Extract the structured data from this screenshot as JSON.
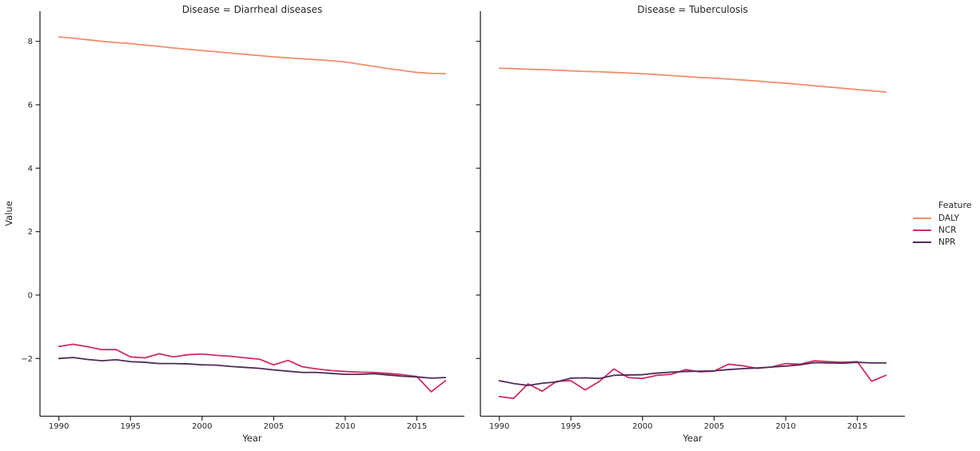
{
  "figure": {
    "background": "#ffffff",
    "text_color": "#262626",
    "axis_color": "#262626"
  },
  "panels": [
    {
      "title": "Disease = Diarrheal diseases"
    },
    {
      "title": "Disease = Tuberculosis"
    }
  ],
  "axes": {
    "xlabel": "Year",
    "ylabel": "Value",
    "x_tick_labels": [
      "1990",
      "1995",
      "2000",
      "2005",
      "2010",
      "2015"
    ],
    "y_tick_labels": [
      "8",
      "6",
      "4",
      "2",
      "0",
      "−2"
    ]
  },
  "legend": {
    "title": "Feature",
    "entries": [
      {
        "label": "DALY",
        "color": "#EF8F6B"
      },
      {
        "label": "NCR",
        "color": "#CE2D63"
      },
      {
        "label": "NPR",
        "color": "#502B58"
      }
    ]
  },
  "chart_data": [
    {
      "type": "line",
      "title": "Disease = Diarrheal diseases",
      "xlabel": "Year",
      "ylabel": "Value",
      "x": [
        1990,
        1991,
        1992,
        1993,
        1994,
        1995,
        1996,
        1997,
        1998,
        1999,
        2000,
        2001,
        2002,
        2003,
        2004,
        2005,
        2006,
        2007,
        2008,
        2009,
        2010,
        2011,
        2012,
        2013,
        2014,
        2015,
        2016,
        2017
      ],
      "x_tick_values": [
        1990,
        1995,
        2000,
        2005,
        2010,
        2015
      ],
      "y_tick_values": [
        8,
        6,
        4,
        2,
        0,
        -2
      ],
      "xlim": [
        1988.68,
        2018.32
      ],
      "ylim": [
        -3.82,
        8.95
      ],
      "legend_position": "right",
      "grid": false,
      "series": [
        {
          "name": "DALY",
          "color": "#EF8F6B",
          "values": [
            8.14,
            8.1,
            8.05,
            8.0,
            7.96,
            7.93,
            7.88,
            7.84,
            7.79,
            7.75,
            7.71,
            7.67,
            7.63,
            7.59,
            7.55,
            7.51,
            7.48,
            7.45,
            7.42,
            7.39,
            7.35,
            7.28,
            7.21,
            7.14,
            7.08,
            7.02,
            6.99,
            6.98
          ]
        },
        {
          "name": "NCR",
          "color": "#CE2D63",
          "values": [
            -1.62,
            -1.55,
            -1.63,
            -1.72,
            -1.72,
            -1.95,
            -1.98,
            -1.85,
            -1.95,
            -1.88,
            -1.86,
            -1.9,
            -1.93,
            -1.98,
            -2.02,
            -2.2,
            -2.06,
            -2.26,
            -2.33,
            -2.38,
            -2.41,
            -2.43,
            -2.44,
            -2.47,
            -2.51,
            -2.57,
            -3.05,
            -2.7
          ]
        },
        {
          "name": "NPR",
          "color": "#502B58",
          "values": [
            -2.0,
            -1.97,
            -2.03,
            -2.07,
            -2.04,
            -2.1,
            -2.12,
            -2.16,
            -2.16,
            -2.17,
            -2.2,
            -2.21,
            -2.25,
            -2.28,
            -2.31,
            -2.36,
            -2.4,
            -2.44,
            -2.44,
            -2.47,
            -2.5,
            -2.5,
            -2.48,
            -2.52,
            -2.56,
            -2.58,
            -2.62,
            -2.6
          ]
        }
      ]
    },
    {
      "type": "line",
      "title": "Disease = Tuberculosis",
      "xlabel": "Year",
      "ylabel": "Value",
      "x": [
        1990,
        1991,
        1992,
        1993,
        1994,
        1995,
        1996,
        1997,
        1998,
        1999,
        2000,
        2001,
        2002,
        2003,
        2004,
        2005,
        2006,
        2007,
        2008,
        2009,
        2010,
        2011,
        2012,
        2013,
        2014,
        2015,
        2016,
        2017
      ],
      "x_tick_values": [
        1990,
        1995,
        2000,
        2005,
        2010,
        2015
      ],
      "y_tick_values": [
        8,
        6,
        4,
        2,
        0,
        -2
      ],
      "xlim": [
        1988.68,
        2018.32
      ],
      "ylim": [
        -3.82,
        8.95
      ],
      "legend_position": "right",
      "grid": false,
      "series": [
        {
          "name": "DALY",
          "color": "#EF8F6B",
          "values": [
            7.15,
            7.14,
            7.12,
            7.11,
            7.09,
            7.07,
            7.05,
            7.04,
            7.02,
            7.0,
            6.98,
            6.95,
            6.92,
            6.89,
            6.86,
            6.84,
            6.81,
            6.78,
            6.75,
            6.71,
            6.68,
            6.64,
            6.6,
            6.56,
            6.52,
            6.48,
            6.44,
            6.4
          ]
        },
        {
          "name": "NCR",
          "color": "#CE2D63",
          "values": [
            -3.2,
            -3.26,
            -2.8,
            -3.03,
            -2.72,
            -2.7,
            -2.99,
            -2.72,
            -2.33,
            -2.6,
            -2.63,
            -2.53,
            -2.5,
            -2.35,
            -2.42,
            -2.4,
            -2.18,
            -2.23,
            -2.31,
            -2.27,
            -2.16,
            -2.18,
            -2.07,
            -2.1,
            -2.12,
            -2.1,
            -2.72,
            -2.53
          ]
        },
        {
          "name": "NPR",
          "color": "#502B58",
          "values": [
            -2.7,
            -2.79,
            -2.85,
            -2.78,
            -2.74,
            -2.62,
            -2.61,
            -2.63,
            -2.53,
            -2.52,
            -2.51,
            -2.46,
            -2.43,
            -2.41,
            -2.4,
            -2.39,
            -2.35,
            -2.32,
            -2.3,
            -2.27,
            -2.24,
            -2.2,
            -2.13,
            -2.14,
            -2.15,
            -2.12,
            -2.14,
            -2.14
          ]
        }
      ]
    }
  ]
}
